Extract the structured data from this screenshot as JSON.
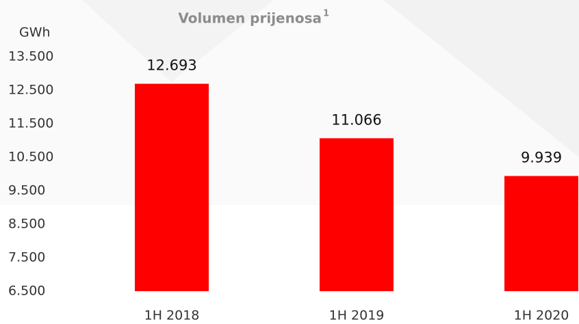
{
  "chart_data": {
    "type": "bar",
    "title": "Volumen prijenosa",
    "title_footnote": "1",
    "y_axis_label": "GWh",
    "categories": [
      "1H 2018",
      "1H 2019",
      "1H 2020"
    ],
    "values": [
      12693,
      11066,
      9939
    ],
    "value_labels": [
      "12.693",
      "11.066",
      "9.939"
    ],
    "color": "#ff0000",
    "ylim": [
      6500,
      13500
    ],
    "yticks": [
      {
        "value": 6500,
        "label": "6.500"
      },
      {
        "value": 7500,
        "label": "7.500"
      },
      {
        "value": 8500,
        "label": "8.500"
      },
      {
        "value": 9500,
        "label": "9.500"
      },
      {
        "value": 10500,
        "label": "10.500"
      },
      {
        "value": 11500,
        "label": "11.500"
      },
      {
        "value": 12500,
        "label": "12.500"
      },
      {
        "value": 13500,
        "label": "13.500"
      }
    ],
    "grid": false
  }
}
